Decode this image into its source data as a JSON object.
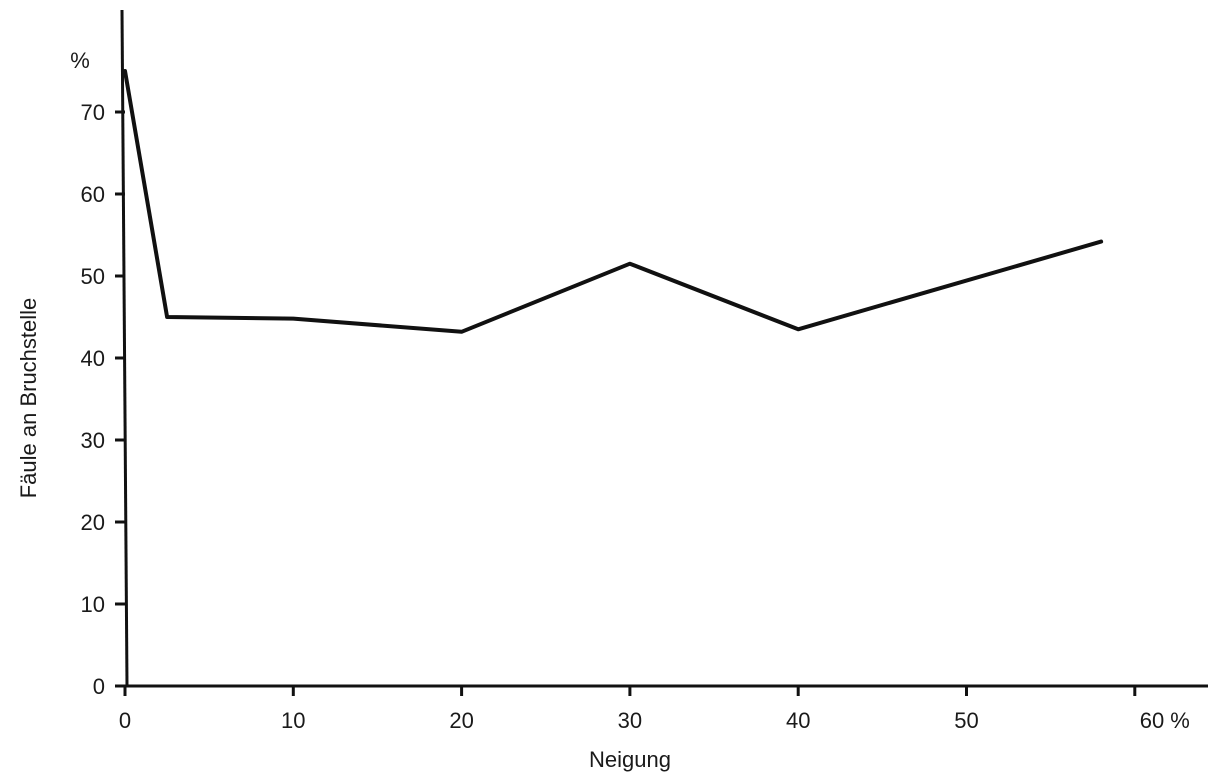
{
  "chart_data": {
    "type": "line",
    "xlabel": "Neigung",
    "ylabel": "Fäule an Bruchstelle",
    "y_unit": "%",
    "x_ticks": [
      "0",
      "10",
      "20",
      "30",
      "40",
      "50",
      "60 %"
    ],
    "y_ticks": [
      "0",
      "10",
      "20",
      "30",
      "40",
      "50",
      "60",
      "70"
    ],
    "xlim": [
      0,
      65
    ],
    "ylim": [
      0,
      75
    ],
    "x": [
      0,
      2.5,
      10,
      20,
      30,
      40,
      58
    ],
    "y": [
      75,
      45,
      44.8,
      43.2,
      51.5,
      43.5,
      54.2
    ],
    "line_color": "#111111",
    "grid": false
  }
}
